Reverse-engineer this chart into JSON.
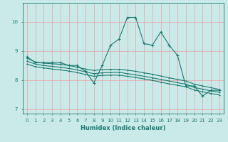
{
  "xlabel": "Humidex (Indice chaleur)",
  "background_color": "#caeaea",
  "grid_color": "#e8a0a0",
  "line_color": "#1a7a6e",
  "xlim": [
    -0.5,
    23.5
  ],
  "ylim": [
    6.85,
    10.65
  ],
  "yticks": [
    7,
    8,
    9,
    10
  ],
  "xticks": [
    0,
    1,
    2,
    3,
    4,
    5,
    6,
    7,
    8,
    9,
    10,
    11,
    12,
    13,
    14,
    15,
    16,
    17,
    18,
    19,
    20,
    21,
    22,
    23
  ],
  "main_line": [
    8.8,
    8.6,
    8.6,
    8.6,
    8.6,
    8.5,
    8.5,
    8.3,
    7.9,
    8.5,
    9.2,
    9.4,
    10.15,
    10.15,
    9.25,
    9.2,
    9.65,
    9.2,
    8.85,
    7.8,
    7.8,
    7.45,
    7.65,
    7.65
  ],
  "trend1": [
    8.75,
    8.62,
    8.58,
    8.56,
    8.54,
    8.5,
    8.44,
    8.38,
    8.33,
    8.36,
    8.37,
    8.37,
    8.34,
    8.3,
    8.25,
    8.2,
    8.14,
    8.08,
    8.02,
    7.97,
    7.86,
    7.8,
    7.74,
    7.68
  ],
  "trend2": [
    8.65,
    8.55,
    8.5,
    8.47,
    8.44,
    8.4,
    8.35,
    8.28,
    8.22,
    8.25,
    8.26,
    8.27,
    8.22,
    8.18,
    8.13,
    8.08,
    8.02,
    7.97,
    7.91,
    7.86,
    7.75,
    7.69,
    7.63,
    7.58
  ],
  "trend3": [
    8.55,
    8.46,
    8.42,
    8.38,
    8.35,
    8.31,
    8.26,
    8.19,
    8.13,
    8.16,
    8.17,
    8.17,
    8.13,
    8.09,
    8.04,
    7.99,
    7.93,
    7.87,
    7.82,
    7.77,
    7.66,
    7.6,
    7.54,
    7.49
  ]
}
